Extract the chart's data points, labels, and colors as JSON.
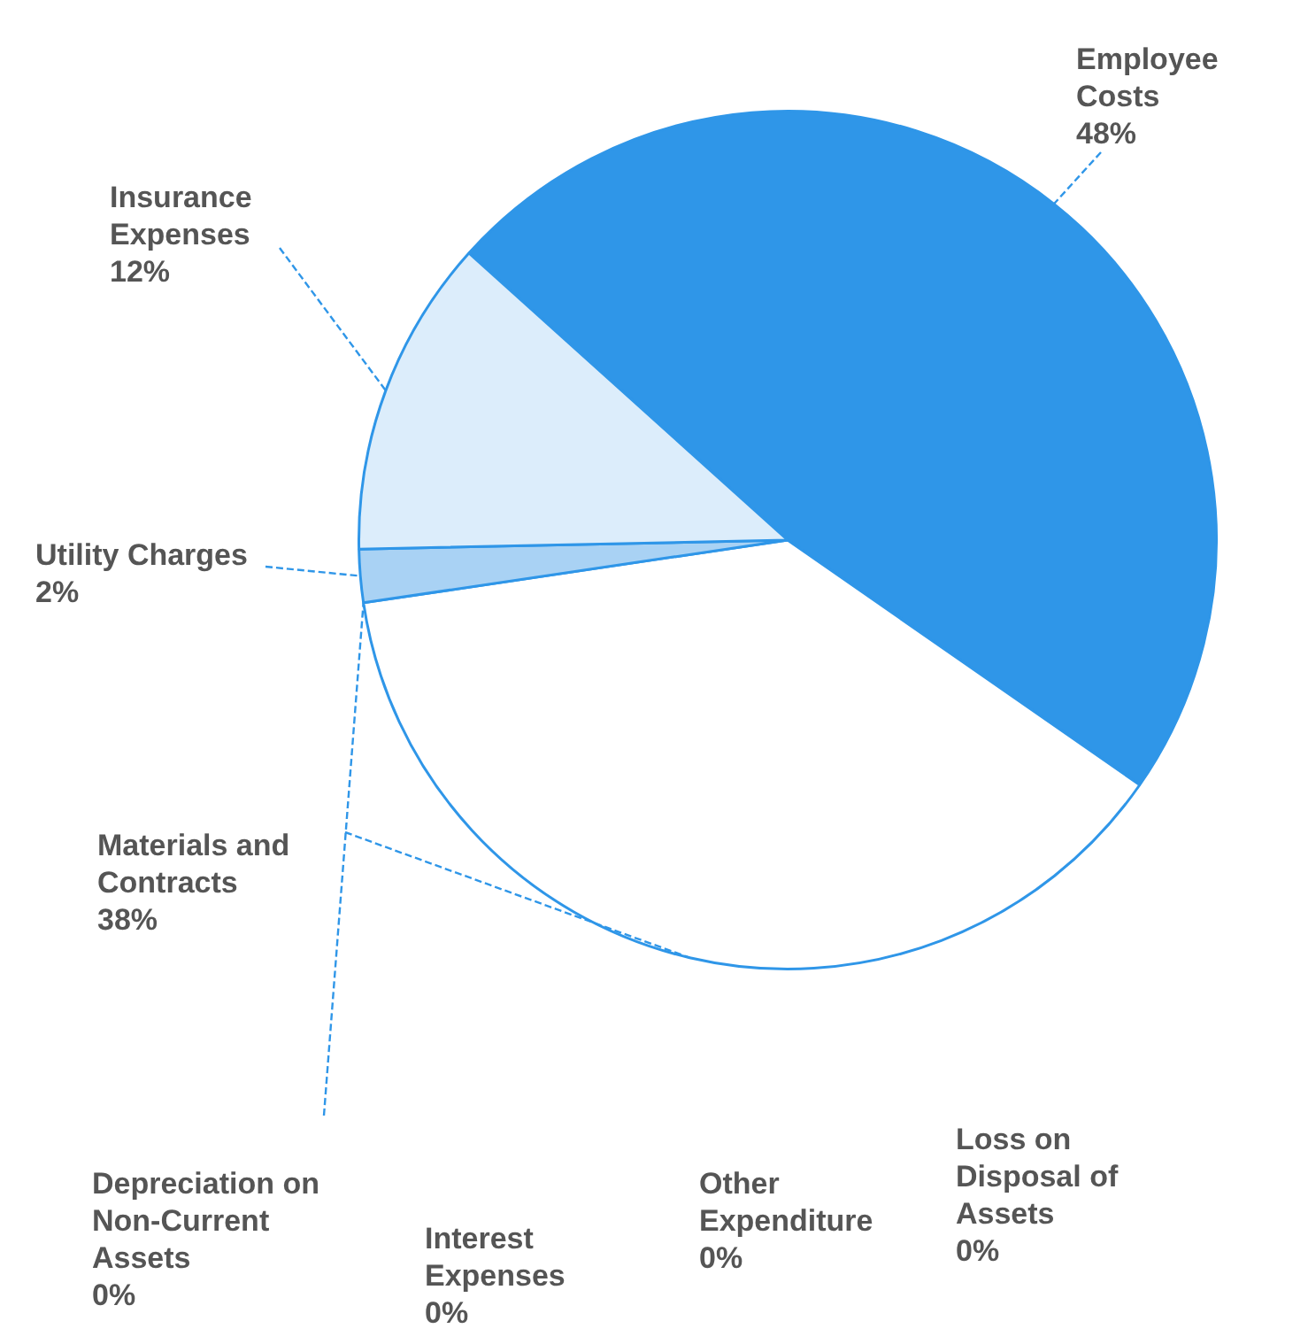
{
  "chart_data": {
    "type": "pie",
    "categories": [
      "Employee Costs",
      "Materials and Contracts",
      "Depreciation on Non-Current Assets",
      "Interest Expenses",
      "Other Expenditure",
      "Loss on Disposal of Assets",
      "Utility Charges",
      "Insurance Expenses"
    ],
    "values": [
      48,
      38,
      0,
      0,
      0,
      0,
      2,
      12
    ],
    "value_labels": [
      "48%",
      "38%",
      "0%",
      "0%",
      "0%",
      "0%",
      "2%",
      "12%"
    ],
    "colors": [
      "#2f96e8",
      "#ffffff",
      "#2f96e8",
      "#2f96e8",
      "#2f96e8",
      "#2f96e8",
      "#a9d2f4",
      "#dcedfb"
    ],
    "legend": false
  }
}
